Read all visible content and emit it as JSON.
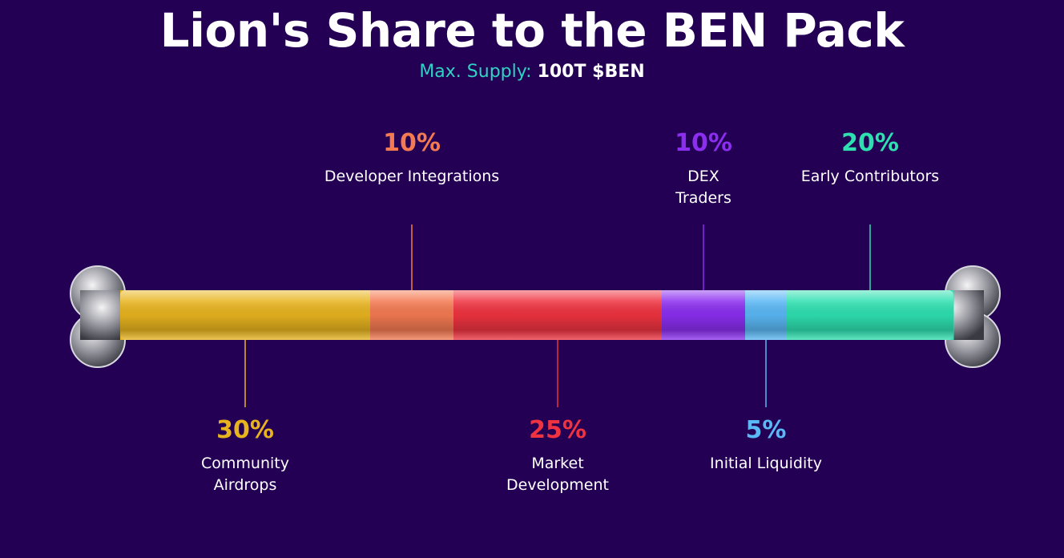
{
  "header": {
    "title": "Lion's Share to the BEN Pack",
    "supply_label": "Max. Supply:",
    "supply_value": "100T $BEN"
  },
  "chart_data": {
    "type": "bar",
    "title": "Lion's Share to the BEN Pack",
    "subtitle": "Max. Supply: 100T $BEN",
    "unit": "%",
    "series": [
      {
        "name": "Community Airdrops",
        "value": 30,
        "value_label": "30%",
        "color": "#e8b41e",
        "label_position": "bottom",
        "label_text": "Community\nAirdrops"
      },
      {
        "name": "Developer Integrations",
        "value": 10,
        "value_label": "10%",
        "color": "#f47a52",
        "label_position": "top",
        "label_text": "Developer Integrations"
      },
      {
        "name": "Market Development",
        "value": 25,
        "value_label": "25%",
        "color": "#ef3340",
        "label_position": "bottom",
        "label_text": "Market\nDevelopment"
      },
      {
        "name": "DEX Traders",
        "value": 10,
        "value_label": "10%",
        "color": "#8b2ef0",
        "label_position": "top",
        "label_text": "DEX\nTraders"
      },
      {
        "name": "Initial Liquidity",
        "value": 5,
        "value_label": "5%",
        "color": "#5ab8f5",
        "label_position": "bottom",
        "label_text": "Initial Liquidity"
      },
      {
        "name": "Early Contributors",
        "value": 20,
        "value_label": "20%",
        "color": "#2ee0b0",
        "label_position": "top",
        "label_text": "Early Contributors"
      }
    ]
  }
}
